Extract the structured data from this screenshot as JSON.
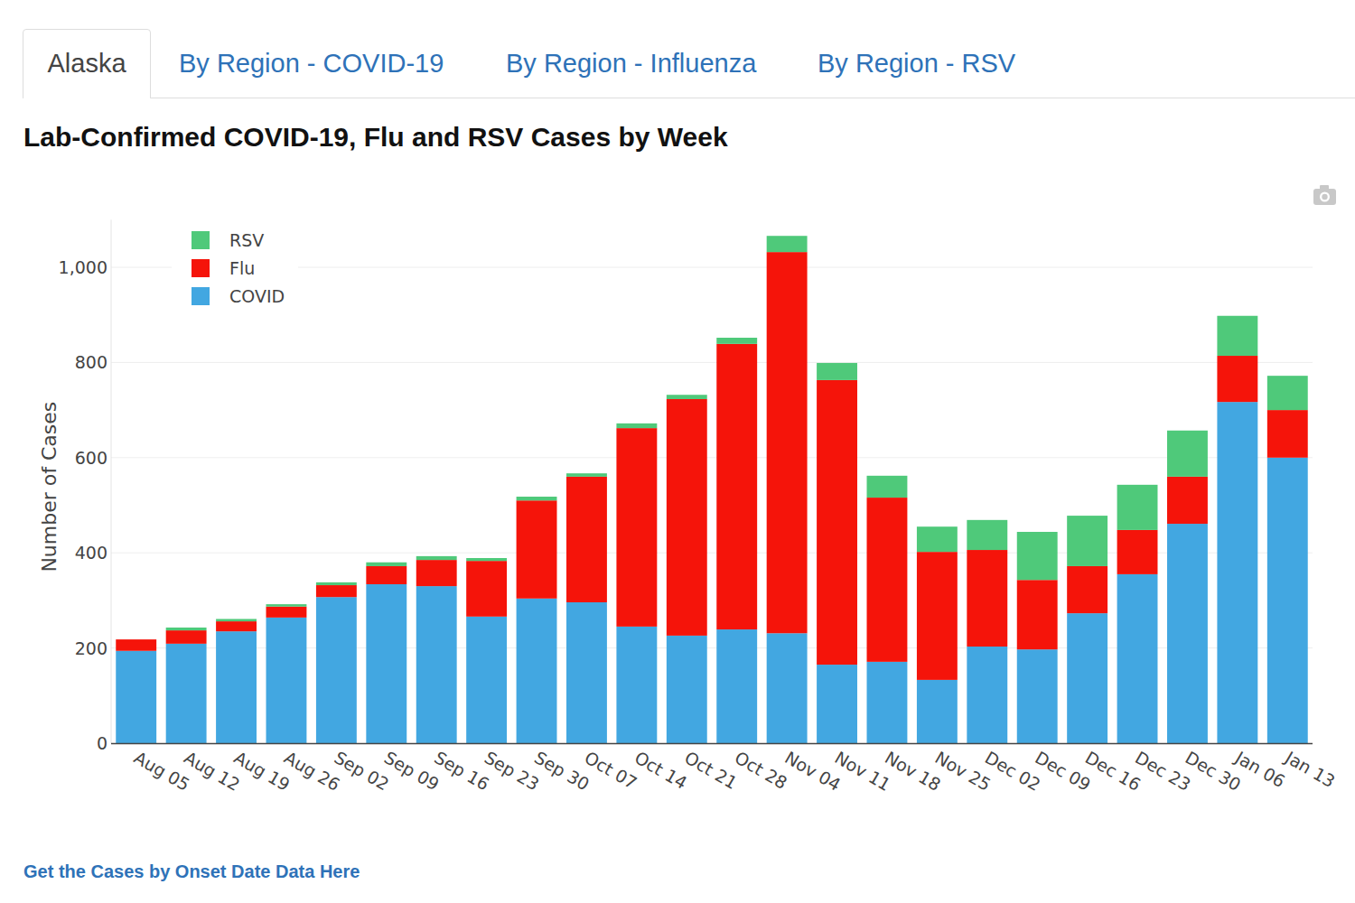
{
  "page": {
    "tabs": [
      "Alaska",
      "By Region - COVID-19",
      "By Region - Influenza",
      "By Region - RSV"
    ],
    "link": "Get the Cases by Onset Date Data Here"
  },
  "chart_data": {
    "type": "bar",
    "stacked": true,
    "grid": true,
    "legend": "top-left",
    "title": "Lab-Confirmed COVID-19, Flu and RSV Cases by Week",
    "y_label": "Number of Cases",
    "categories": [
      "Aug 05",
      "Aug 12",
      "Aug 19",
      "Aug 26",
      "Sep 02",
      "Sep 09",
      "Sep 16",
      "Sep 23",
      "Sep 30",
      "Oct 07",
      "Oct 14",
      "Oct 21",
      "Oct 28",
      "Nov 04",
      "Nov 11",
      "Nov 18",
      "Nov 25",
      "Dec 02",
      "Dec 09",
      "Dec 16",
      "Dec 23",
      "Dec 30",
      "Jan 06",
      "Jan 13"
    ],
    "series": [
      {
        "name": "COVID",
        "color": "#42a7e1",
        "values": [
          194,
          209,
          235,
          264,
          307,
          334,
          330,
          266,
          304,
          296,
          245,
          226,
          239,
          231,
          165,
          171,
          133,
          203,
          197,
          273,
          355,
          461,
          717,
          600
        ]
      },
      {
        "name": "Flu",
        "color": "#f5140a",
        "values": [
          24,
          28,
          21,
          23,
          25,
          38,
          55,
          117,
          206,
          264,
          417,
          497,
          600,
          801,
          598,
          345,
          269,
          203,
          146,
          99,
          93,
          99,
          97,
          100
        ]
      },
      {
        "name": "RSV",
        "color": "#4fc97a",
        "values": [
          0,
          6,
          5,
          5,
          6,
          8,
          8,
          6,
          8,
          7,
          10,
          9,
          13,
          34,
          36,
          46,
          53,
          63,
          101,
          106,
          95,
          97,
          84,
          72
        ]
      }
    ],
    "ylim": [
      0,
      1100
    ],
    "yticks": [
      0,
      200,
      400,
      600,
      800,
      {
        "value": 1000,
        "label": "1,000"
      }
    ]
  }
}
